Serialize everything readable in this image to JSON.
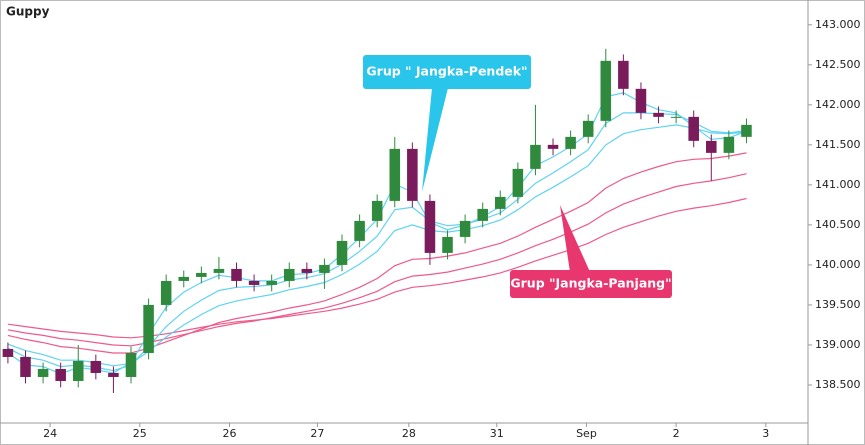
{
  "chart_data": {
    "type": "candlestick",
    "title": "Guppy",
    "xlim": [
      -0.45,
      45.5
    ],
    "ylim": [
      138.0,
      143.31
    ],
    "xticks": [
      {
        "value": 2.4,
        "label": "24"
      },
      {
        "value": 7.5,
        "label": "25"
      },
      {
        "value": 12.6,
        "label": "26"
      },
      {
        "value": 17.6,
        "label": "27"
      },
      {
        "value": 22.8,
        "label": "28"
      },
      {
        "value": 27.8,
        "label": "31"
      },
      {
        "value": 32.9,
        "label": "Sep"
      },
      {
        "value": 38.0,
        "label": "2"
      },
      {
        "value": 43.1,
        "label": "3"
      }
    ],
    "yticks": [
      {
        "value": 138.5,
        "label": "138.500"
      },
      {
        "value": 139.0,
        "label": "139.000"
      },
      {
        "value": 139.5,
        "label": "139.500"
      },
      {
        "value": 140.0,
        "label": "140.000"
      },
      {
        "value": 140.5,
        "label": "140.500"
      },
      {
        "value": 141.0,
        "label": "141.000"
      },
      {
        "value": 141.5,
        "label": "141.500"
      },
      {
        "value": 142.0,
        "label": "142.000"
      },
      {
        "value": 142.5,
        "label": "142.500"
      },
      {
        "value": 143.0,
        "label": "143.000"
      }
    ],
    "up_color": "#2f8a3e",
    "down_color": "#7a1b5c",
    "candles": {
      "x": [
        0,
        1,
        2,
        3,
        4,
        5,
        6,
        7,
        8,
        9,
        10,
        11,
        12,
        13,
        14,
        15,
        16,
        17,
        18,
        19,
        20,
        21,
        22,
        23,
        24,
        25,
        26,
        27,
        28,
        29,
        30,
        31,
        32,
        33,
        34,
        35,
        36,
        37,
        38,
        39,
        40,
        41,
        42
      ],
      "open": [
        138.95,
        138.85,
        138.6,
        138.7,
        138.55,
        138.8,
        138.65,
        138.6,
        138.9,
        139.5,
        139.8,
        139.85,
        139.9,
        139.95,
        139.8,
        139.75,
        139.8,
        139.95,
        139.9,
        140.0,
        140.3,
        140.55,
        140.8,
        141.45,
        140.8,
        140.15,
        140.35,
        140.55,
        140.7,
        140.85,
        141.2,
        141.5,
        141.45,
        141.6,
        141.8,
        142.55,
        142.2,
        141.9,
        141.85,
        141.85,
        141.55,
        141.4,
        141.6
      ],
      "high": [
        139.03,
        138.93,
        138.78,
        138.78,
        139.0,
        138.88,
        138.73,
        138.98,
        139.58,
        139.88,
        139.93,
        139.98,
        140.1,
        140.03,
        139.88,
        139.88,
        140.03,
        140.03,
        140.08,
        140.38,
        140.63,
        140.88,
        141.6,
        141.53,
        140.88,
        140.43,
        140.63,
        140.78,
        140.93,
        141.28,
        142.0,
        141.58,
        141.68,
        141.88,
        142.7,
        142.63,
        142.28,
        141.98,
        141.93,
        141.93,
        141.63,
        141.68,
        141.83
      ],
      "low": [
        138.77,
        138.52,
        138.52,
        138.47,
        138.47,
        138.57,
        138.4,
        138.52,
        138.82,
        139.42,
        139.72,
        139.77,
        139.82,
        139.72,
        139.67,
        139.67,
        139.72,
        139.82,
        139.7,
        139.92,
        140.22,
        140.47,
        140.72,
        140.72,
        140.0,
        140.07,
        140.27,
        140.47,
        140.62,
        140.77,
        141.12,
        141.37,
        141.37,
        141.52,
        141.72,
        142.12,
        141.82,
        141.77,
        141.77,
        141.47,
        141.05,
        141.32,
        141.52
      ],
      "close": [
        138.85,
        138.6,
        138.7,
        138.55,
        138.8,
        138.65,
        138.6,
        138.9,
        139.5,
        139.8,
        139.85,
        139.9,
        139.95,
        139.8,
        139.75,
        139.8,
        139.95,
        139.9,
        140.0,
        140.3,
        140.55,
        140.8,
        141.45,
        140.8,
        140.15,
        140.35,
        140.55,
        140.7,
        140.85,
        141.2,
        141.5,
        141.45,
        141.6,
        141.8,
        142.55,
        142.2,
        141.9,
        141.85,
        141.85,
        141.55,
        141.4,
        141.6,
        141.75
      ]
    },
    "series": [
      {
        "color": "#5fd3f0",
        "values": [
          138.9,
          138.75,
          138.73,
          138.64,
          138.72,
          138.69,
          138.65,
          138.78,
          139.14,
          139.47,
          139.66,
          139.78,
          139.87,
          139.84,
          139.8,
          139.8,
          139.88,
          139.89,
          139.95,
          140.13,
          140.34,
          140.57,
          141.01,
          140.91,
          140.53,
          140.44,
          140.5,
          140.6,
          140.73,
          140.97,
          141.24,
          141.35,
          141.48,
          141.64,
          142.1,
          142.15,
          142.03,
          141.94,
          141.9,
          141.73,
          141.57,
          141.59,
          141.67
        ]
      },
      {
        "color": "#5fd3f0",
        "values": [
          138.96,
          138.85,
          138.81,
          138.73,
          138.75,
          138.72,
          138.68,
          138.75,
          138.98,
          139.23,
          139.42,
          139.56,
          139.68,
          139.72,
          139.73,
          139.75,
          139.81,
          139.84,
          139.89,
          140.01,
          140.17,
          140.36,
          140.69,
          140.72,
          140.55,
          140.49,
          140.51,
          140.57,
          140.65,
          140.82,
          141.02,
          141.15,
          141.29,
          141.44,
          141.77,
          141.9,
          141.9,
          141.89,
          141.88,
          141.78,
          141.67,
          141.65,
          141.68
        ]
      },
      {
        "color": "#5fd3f0",
        "values": [
          139.01,
          138.93,
          138.88,
          138.81,
          138.81,
          138.78,
          138.74,
          138.77,
          138.92,
          139.1,
          139.25,
          139.38,
          139.49,
          139.55,
          139.59,
          139.63,
          139.69,
          139.73,
          139.78,
          139.88,
          140.01,
          140.17,
          140.43,
          140.5,
          140.43,
          140.41,
          140.44,
          140.49,
          140.56,
          140.69,
          140.85,
          140.97,
          141.1,
          141.24,
          141.5,
          141.64,
          141.69,
          141.72,
          141.75,
          141.71,
          141.65,
          141.64,
          141.66
        ]
      },
      {
        "color": "#ee5a8a",
        "values": [
          139.12,
          139.07,
          139.03,
          138.98,
          138.96,
          138.93,
          138.9,
          138.9,
          138.96,
          139.04,
          139.12,
          139.2,
          139.28,
          139.33,
          139.37,
          139.41,
          139.46,
          139.5,
          139.55,
          139.63,
          139.72,
          139.83,
          139.99,
          140.07,
          140.08,
          140.11,
          140.15,
          140.21,
          140.27,
          140.36,
          140.47,
          140.57,
          140.67,
          140.78,
          140.96,
          141.08,
          141.16,
          141.23,
          141.29,
          141.32,
          141.33,
          141.36,
          141.4
        ]
      },
      {
        "color": "#ee5a8a",
        "values": [
          139.19,
          139.15,
          139.12,
          139.08,
          139.06,
          139.03,
          139.0,
          138.99,
          139.03,
          139.08,
          139.13,
          139.18,
          139.23,
          139.27,
          139.3,
          139.34,
          139.38,
          139.42,
          139.46,
          139.52,
          139.59,
          139.67,
          139.79,
          139.86,
          139.88,
          139.91,
          139.96,
          140.01,
          140.07,
          140.15,
          140.24,
          140.32,
          140.41,
          140.51,
          140.65,
          140.76,
          140.84,
          140.91,
          140.98,
          141.02,
          141.05,
          141.09,
          141.14
        ]
      },
      {
        "color": "#ee5a8a",
        "values": [
          139.26,
          139.23,
          139.2,
          139.17,
          139.15,
          139.13,
          139.1,
          139.09,
          139.11,
          139.14,
          139.18,
          139.22,
          139.26,
          139.29,
          139.31,
          139.33,
          139.36,
          139.39,
          139.42,
          139.46,
          139.51,
          139.57,
          139.66,
          139.72,
          139.74,
          139.77,
          139.81,
          139.85,
          139.9,
          139.97,
          140.05,
          140.12,
          140.19,
          140.27,
          140.38,
          140.47,
          140.54,
          140.61,
          140.67,
          140.71,
          140.74,
          140.78,
          140.83
        ]
      }
    ],
    "annotations": [
      {
        "text": "Grup \" Jangka-Pendek\"",
        "color": "#29c5ea"
      },
      {
        "text": "Grup \"Jangka-Panjang\"",
        "color": "#e8366f"
      }
    ]
  }
}
